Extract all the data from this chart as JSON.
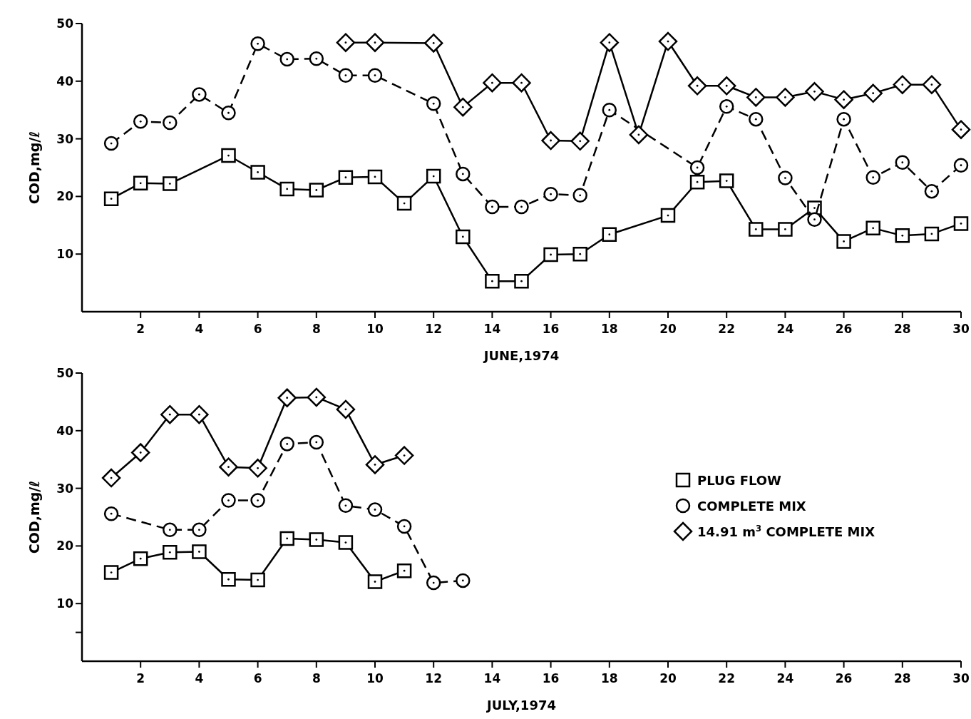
{
  "chart_data": [
    {
      "type": "line",
      "xlabel": "JUNE,1974",
      "ylabel": "COD,mg/ℓ",
      "xlim": [
        0,
        30
      ],
      "xticks": [
        2,
        4,
        6,
        8,
        10,
        12,
        14,
        16,
        18,
        20,
        22,
        24,
        26,
        28,
        30
      ],
      "ylim": [
        0,
        50
      ],
      "yticks": [
        10,
        20,
        30,
        40,
        50
      ],
      "series": [
        {
          "color": "#000000",
          "marker": "square",
          "line_style": "solid",
          "x": [
            1,
            2,
            3,
            5,
            6,
            7,
            8,
            9,
            10,
            11,
            12,
            13,
            14,
            15,
            16,
            17,
            18,
            20,
            21,
            22,
            23,
            24,
            25,
            26,
            27,
            28,
            29,
            30
          ],
          "values": [
            19.6,
            22.3,
            22.2,
            27.1,
            24.2,
            21.3,
            21.1,
            23.3,
            23.4,
            18.8,
            23.5,
            13.0,
            5.3,
            5.3,
            9.9,
            10.0,
            13.4,
            16.7,
            22.5,
            22.7,
            14.3,
            14.3,
            18.0,
            12.2,
            14.5,
            13.2,
            13.5,
            15.3
          ]
        },
        {
          "color": "#000000",
          "marker": "circle",
          "line_style": "dashed",
          "x": [
            1,
            2,
            3,
            4,
            5,
            6,
            7,
            8,
            9,
            10,
            12,
            13,
            14,
            15,
            16,
            17,
            18,
            21,
            22,
            23,
            24,
            25,
            26,
            27,
            28,
            29,
            30
          ],
          "values": [
            29.2,
            33.0,
            32.8,
            37.7,
            34.5,
            46.5,
            43.8,
            43.9,
            41.0,
            41.0,
            36.1,
            23.9,
            18.2,
            18.2,
            20.4,
            20.2,
            35.0,
            25.0,
            35.6,
            33.4,
            23.2,
            16.0,
            33.4,
            23.3,
            25.9,
            20.9,
            25.4
          ]
        },
        {
          "color": "#000000",
          "marker": "diamond",
          "line_style": "solid",
          "x": [
            9,
            10,
            12,
            13,
            14,
            15,
            16,
            17,
            18,
            19,
            20,
            21,
            22,
            23,
            24,
            25,
            26,
            27,
            28,
            29,
            30
          ],
          "values": [
            46.7,
            46.7,
            46.6,
            35.5,
            39.7,
            39.7,
            29.7,
            29.6,
            46.7,
            30.7,
            46.9,
            39.2,
            39.2,
            37.2,
            37.2,
            38.2,
            36.8,
            37.9,
            39.4,
            39.4,
            31.6
          ]
        }
      ]
    },
    {
      "type": "line",
      "xlabel": "JULY,1974",
      "ylabel": "COD,mg/ℓ",
      "xlim": [
        0,
        30
      ],
      "xticks": [
        2,
        4,
        6,
        8,
        10,
        12,
        14,
        16,
        18,
        20,
        22,
        24,
        26,
        28,
        30
      ],
      "ylim": [
        0,
        50
      ],
      "yticks": [
        {
          "value": 5,
          "label": null
        },
        10,
        20,
        30,
        40,
        50
      ],
      "legend": "right",
      "series": [
        {
          "name": "PLUG FLOW",
          "color": "#000000",
          "marker": "square",
          "line_style": "solid",
          "x": [
            1,
            2,
            3,
            4,
            5,
            6,
            7,
            8,
            9,
            10,
            11
          ],
          "values": [
            15.4,
            17.8,
            18.9,
            19.0,
            14.2,
            14.1,
            21.3,
            21.1,
            20.6,
            13.8,
            15.7
          ]
        },
        {
          "name": "COMPLETE MIX",
          "color": "#000000",
          "marker": "circle",
          "line_style": "dashed",
          "x": [
            1,
            3,
            4,
            5,
            6,
            7,
            8,
            9,
            10,
            11,
            12,
            13
          ],
          "values": [
            25.6,
            22.8,
            22.8,
            27.9,
            27.9,
            37.7,
            38.0,
            27.0,
            26.3,
            23.4,
            13.6,
            14.0
          ]
        },
        {
          "name": "14.91 m$^{3}$ COMPLETE MIX",
          "color": "#000000",
          "marker": "diamond",
          "line_style": "solid",
          "x": [
            1,
            2,
            3,
            4,
            5,
            6,
            7,
            8,
            9,
            10,
            11
          ],
          "values": [
            31.8,
            36.2,
            42.8,
            42.8,
            33.7,
            33.5,
            45.7,
            45.8,
            43.7,
            34.1,
            35.7
          ]
        }
      ]
    }
  ]
}
